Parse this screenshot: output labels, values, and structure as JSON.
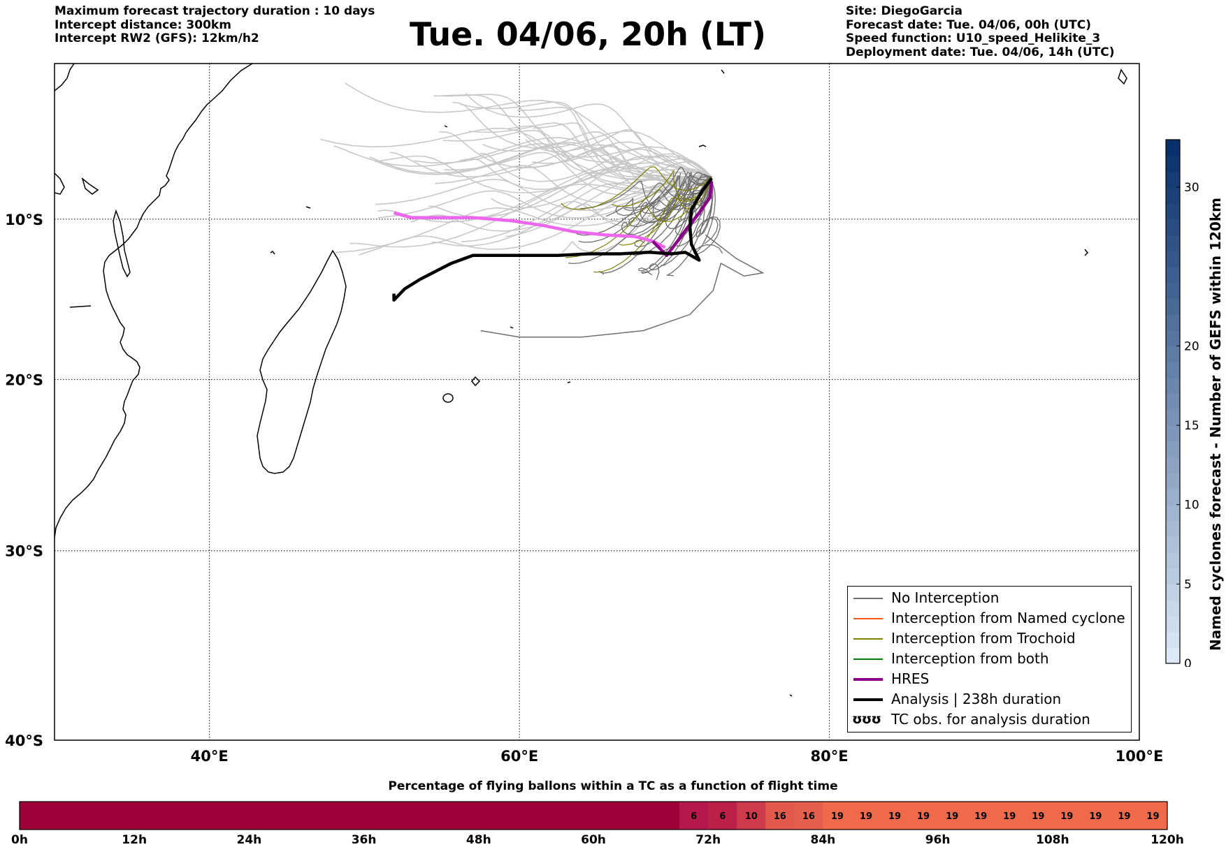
{
  "header_left": [
    "Maximum forecast trajectory duration : 10 days",
    "Intercept distance: 300km",
    "Intercept RW2 (GFS):  12km/h2"
  ],
  "header_right": [
    "Site: DiegoGarcia",
    "Forecast date: Tue. 04/06, 00h (UTC)",
    "Speed function: U10_speed_Helikite_3",
    "Deployment date: Tue. 04/06, 14h (UTC)"
  ],
  "title": "Tue. 04/06, 20h (LT)",
  "map": {
    "lon_range": [
      30,
      100
    ],
    "lat_range": [
      -40,
      0
    ],
    "lat_ticks": [
      {
        "value": -10,
        "label": "10°S"
      },
      {
        "value": -20,
        "label": "20°S"
      },
      {
        "value": -30,
        "label": "30°S"
      },
      {
        "value": -40,
        "label": "40°S"
      }
    ],
    "lon_ticks": [
      {
        "value": 40,
        "label": "40°E"
      },
      {
        "value": 60,
        "label": "60°E"
      },
      {
        "value": 80,
        "label": "80°E"
      },
      {
        "value": 100,
        "label": "100°E"
      }
    ],
    "launch_site": {
      "name": "DiegoGarcia",
      "lon": 72.4,
      "lat": -7.3
    },
    "colors": {
      "no_interception": "#6e6e6e",
      "named_cyclone": "#ff5a14",
      "trochoid": "#808000",
      "both": "#008000",
      "hres": "#8b008b",
      "analysis": "#000000",
      "ensemble_faint": "#c8c8c8",
      "pink_track": "#ee66ee"
    },
    "hres_track": [
      [
        72.4,
        -7.6
      ],
      [
        72.3,
        -8.6
      ],
      [
        71.6,
        -9.6
      ],
      [
        70.8,
        -10.6
      ],
      [
        70.2,
        -11.4
      ],
      [
        69.5,
        -12.3
      ],
      [
        68.6,
        -11.4
      ],
      [
        67.4,
        -11.1
      ],
      [
        65.5,
        -11
      ],
      [
        63.5,
        -10.8
      ],
      [
        61.5,
        -10.4
      ],
      [
        59.5,
        -10.1
      ],
      [
        57,
        -9.9
      ],
      [
        55,
        -9.9
      ],
      [
        53,
        -9.9
      ],
      [
        51.9,
        -9.6
      ]
    ],
    "pink_track": [
      [
        69.4,
        -11.8
      ],
      [
        68.6,
        -11.4
      ],
      [
        67.4,
        -11.1
      ],
      [
        65.5,
        -11
      ],
      [
        63.5,
        -10.8
      ],
      [
        61.5,
        -10.4
      ],
      [
        59.5,
        -10.1
      ],
      [
        57,
        -9.9
      ],
      [
        55,
        -9.9
      ],
      [
        53,
        -9.9
      ],
      [
        51.9,
        -9.6
      ]
    ],
    "analysis_track": [
      [
        72.4,
        -7.4
      ],
      [
        71.8,
        -8.2
      ],
      [
        71.1,
        -9.4
      ],
      [
        71,
        -10.5
      ],
      [
        71.1,
        -11.6
      ],
      [
        71.6,
        -12.6
      ],
      [
        70.7,
        -12.1
      ],
      [
        69.8,
        -12.2
      ],
      [
        68.4,
        -12.1
      ],
      [
        66.5,
        -12.2
      ],
      [
        64.5,
        -12.2
      ],
      [
        62.5,
        -12.3
      ],
      [
        60.5,
        -12.3
      ],
      [
        58.6,
        -12.3
      ],
      [
        57,
        -12.3
      ],
      [
        55.6,
        -12.8
      ],
      [
        54.6,
        -13.3
      ],
      [
        53.6,
        -13.8
      ],
      [
        52.6,
        -14.4
      ],
      [
        51.9,
        -15.1
      ],
      [
        51.9,
        -14.7
      ]
    ]
  },
  "legend": [
    {
      "key": "no_interception",
      "label": "No Interception"
    },
    {
      "key": "named_cyclone",
      "label": "Interception from Named cyclone"
    },
    {
      "key": "trochoid",
      "label": "Interception from Trochoid"
    },
    {
      "key": "both",
      "label": "Interception from both"
    },
    {
      "key": "hres",
      "label": "HRES"
    },
    {
      "key": "analysis",
      "label": "Analysis | 238h duration"
    },
    {
      "key": "tc_obs",
      "label": "TC obs. for analysis duration",
      "symbol": "ʊʊʊ"
    }
  ],
  "colorbar": {
    "label": "Named cyclones forecast - Number of GEFS within 120km",
    "min": 0,
    "max": 33,
    "ticks": [
      0,
      5,
      10,
      15,
      20,
      30
    ],
    "color_low": "#dbe9f6",
    "color_high": "#08306b"
  },
  "time_strip": {
    "title": "Percentage of flying ballons within a TC as a function of flight time",
    "hours_max": 120,
    "tick_labels": [
      "0h",
      "12h",
      "24h",
      "36h",
      "48h",
      "60h",
      "72h",
      "84h",
      "96h",
      "108h",
      "120h"
    ],
    "tick_values": [
      0,
      12,
      24,
      36,
      48,
      60,
      72,
      84,
      96,
      108,
      120
    ],
    "base_color": "#9e003a",
    "cells": [
      {
        "start": 69,
        "end": 72,
        "value": "6",
        "color": "#b5184a"
      },
      {
        "start": 72,
        "end": 75,
        "value": "6",
        "color": "#bc2048"
      },
      {
        "start": 75,
        "end": 78,
        "value": "10",
        "color": "#cc3a4c"
      },
      {
        "start": 78,
        "end": 81,
        "value": "16",
        "color": "#e15a4c"
      },
      {
        "start": 81,
        "end": 84,
        "value": "16",
        "color": "#e4604c"
      },
      {
        "start": 84,
        "end": 87,
        "value": "19",
        "color": "#ef6a4a"
      },
      {
        "start": 87,
        "end": 90,
        "value": "19",
        "color": "#ef6a4a"
      },
      {
        "start": 90,
        "end": 93,
        "value": "19",
        "color": "#ef6a4a"
      },
      {
        "start": 93,
        "end": 96,
        "value": "19",
        "color": "#ef6a4a"
      },
      {
        "start": 96,
        "end": 99,
        "value": "19",
        "color": "#ef6a4a"
      },
      {
        "start": 99,
        "end": 102,
        "value": "19",
        "color": "#ef6a4a"
      },
      {
        "start": 102,
        "end": 105,
        "value": "19",
        "color": "#ef6a4a"
      },
      {
        "start": 105,
        "end": 108,
        "value": "19",
        "color": "#ef6a4a"
      },
      {
        "start": 108,
        "end": 111,
        "value": "19",
        "color": "#ef6a4a"
      },
      {
        "start": 111,
        "end": 114,
        "value": "19",
        "color": "#ef6a4a"
      },
      {
        "start": 114,
        "end": 117,
        "value": "19",
        "color": "#ef6a4a"
      },
      {
        "start": 117,
        "end": 120,
        "value": "19",
        "color": "#ef6a4a"
      }
    ]
  }
}
